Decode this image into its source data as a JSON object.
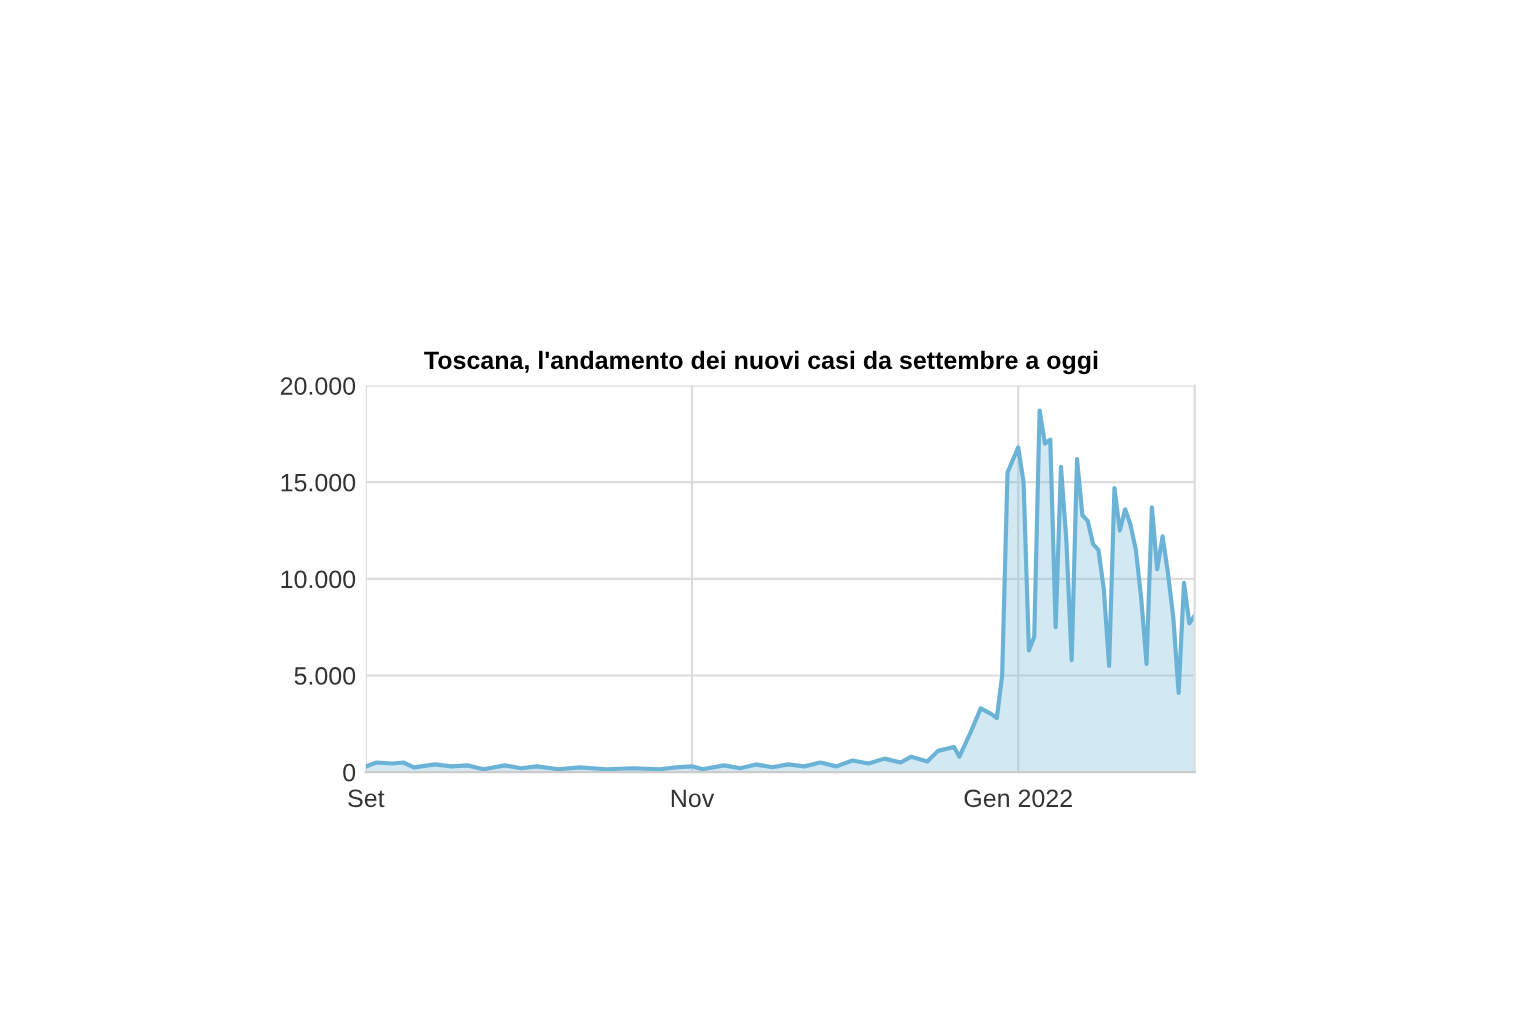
{
  "chart_data": {
    "type": "area",
    "title": "Toscana, l'andamento dei nuovi casi da settembre a oggi",
    "x": [
      "2021-09-01",
      "2021-09-03",
      "2021-09-06",
      "2021-09-08",
      "2021-09-10",
      "2021-09-14",
      "2021-09-17",
      "2021-09-20",
      "2021-09-23",
      "2021-09-27",
      "2021-09-30",
      "2021-10-03",
      "2021-10-07",
      "2021-10-11",
      "2021-10-16",
      "2021-10-21",
      "2021-10-26",
      "2021-10-29",
      "2021-11-01",
      "2021-11-03",
      "2021-11-07",
      "2021-11-10",
      "2021-11-13",
      "2021-11-16",
      "2021-11-19",
      "2021-11-22",
      "2021-11-25",
      "2021-11-28",
      "2021-12-01",
      "2021-12-04",
      "2021-12-07",
      "2021-12-10",
      "2021-12-12",
      "2021-12-15",
      "2021-12-17",
      "2021-12-20",
      "2021-12-21",
      "2021-12-23",
      "2021-12-25",
      "2021-12-27",
      "2021-12-28",
      "2021-12-29",
      "2021-12-30",
      "2022-01-01",
      "2022-01-02",
      "2022-01-03",
      "2022-01-04",
      "2022-01-05",
      "2022-01-06",
      "2022-01-07",
      "2022-01-08",
      "2022-01-09",
      "2022-01-10",
      "2022-01-11",
      "2022-01-12",
      "2022-01-13",
      "2022-01-14",
      "2022-01-15",
      "2022-01-16",
      "2022-01-17",
      "2022-01-18",
      "2022-01-19",
      "2022-01-20",
      "2022-01-21",
      "2022-01-22",
      "2022-01-23",
      "2022-01-24",
      "2022-01-25",
      "2022-01-26",
      "2022-01-27",
      "2022-01-28",
      "2022-01-29",
      "2022-01-30",
      "2022-01-31",
      "2022-02-01",
      "2022-02-02",
      "2022-02-03"
    ],
    "series": [
      {
        "color": "#6bb3d6",
        "values": [
          300,
          500,
          450,
          500,
          250,
          400,
          300,
          350,
          150,
          350,
          200,
          300,
          150,
          250,
          150,
          200,
          150,
          250,
          300,
          150,
          350,
          200,
          400,
          250,
          400,
          300,
          500,
          300,
          600,
          450,
          700,
          500,
          800,
          550,
          1100,
          1300,
          800,
          2000,
          3300,
          3000,
          2800,
          5000,
          15500,
          16800,
          15000,
          6300,
          7000,
          18700,
          17000,
          17200,
          7500,
          15800,
          12000,
          5800,
          16200,
          13300,
          13000,
          11800,
          11500,
          9500,
          5500,
          14700,
          12500,
          13600,
          12800,
          11500,
          9000,
          5600,
          13700,
          10500,
          12200,
          10300,
          8000,
          4100,
          9800,
          7700,
          8100
        ]
      }
    ],
    "xlim": [
      "2021-09-01",
      "2022-02-03"
    ],
    "xticks": [
      {
        "value": "2021-09-01",
        "label": "Set"
      },
      {
        "value": "2021-11-01",
        "label": "Nov"
      },
      {
        "value": "2022-01-01",
        "label": "Gen 2022"
      }
    ],
    "ylim": [
      0,
      20000
    ],
    "yticks": [
      0,
      {
        "value": 5000,
        "label": "5.000"
      },
      {
        "value": 10000,
        "label": "10.000"
      },
      {
        "value": 15000,
        "label": "15.000"
      },
      {
        "value": 20000,
        "label": "20.000"
      }
    ],
    "grid": true
  }
}
